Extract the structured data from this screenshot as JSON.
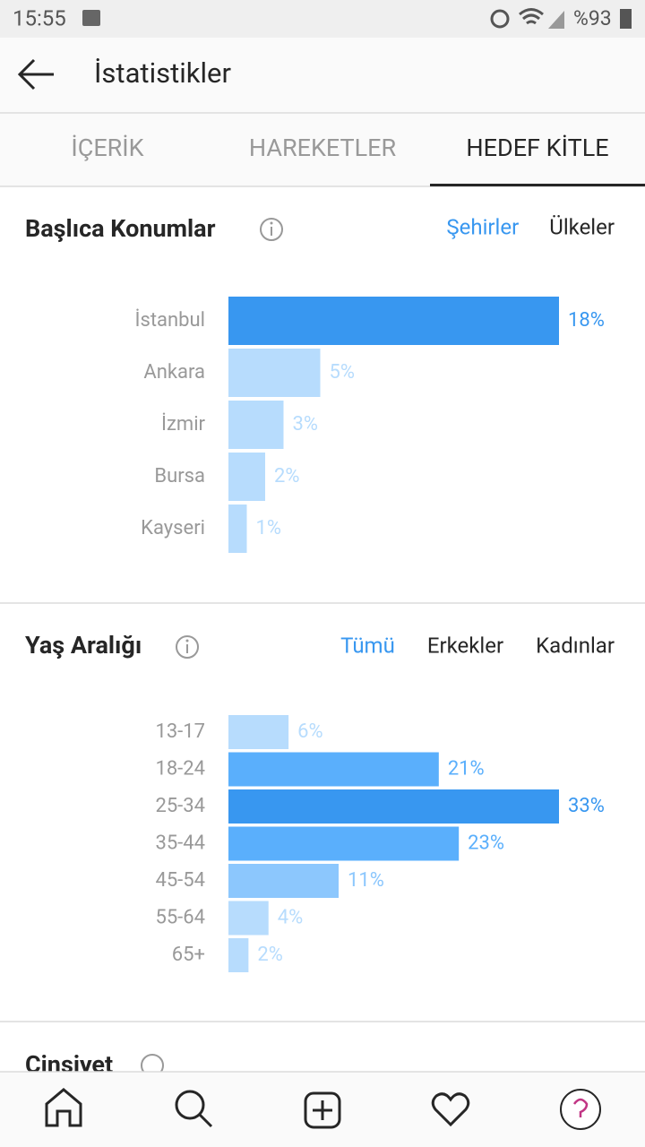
{
  "status_bar": {
    "time": "15:55",
    "battery": "%93"
  },
  "header": {
    "title": "İstatistikler"
  },
  "tabs": [
    "İÇERİK",
    "HAREKETLER",
    "HEDEF KİTLE"
  ],
  "sections": [
    {
      "title": "Başlıca Konumlar",
      "filters": [
        "Şehirler",
        "Ülkeler"
      ],
      "chart_data": {
        "type": "bar",
        "orientation": "horizontal",
        "categories": [
          "İstanbul",
          "Ankara",
          "İzmir",
          "Bursa",
          "Kayseri"
        ],
        "values": [
          18,
          5,
          3,
          2,
          1
        ],
        "value_labels": [
          "18%",
          "5%",
          "3%",
          "2%",
          "1%"
        ],
        "colors": [
          "#3897f0",
          "#b7dcfd",
          "#b7dcfd",
          "#b7dcfd",
          "#b7dcfd"
        ]
      }
    },
    {
      "title": "Yaş Aralığı",
      "filters": [
        "Tümü",
        "Erkekler",
        "Kadınlar"
      ],
      "chart_data": {
        "type": "bar",
        "orientation": "horizontal",
        "categories": [
          "13-17",
          "18-24",
          "25-34",
          "35-44",
          "45-54",
          "55-64",
          "65+"
        ],
        "values": [
          6,
          21,
          33,
          23,
          11,
          4,
          2
        ],
        "value_labels": [
          "6%",
          "21%",
          "33%",
          "23%",
          "11%",
          "4%",
          "2%"
        ],
        "colors": [
          "#b7dcfd",
          "#5aaffc",
          "#3897f0",
          "#5aaffc",
          "#8cc7fd",
          "#b7dcfd",
          "#b7dcfd"
        ]
      }
    }
  ],
  "gender_section": {
    "title": "Cinsiyet"
  }
}
